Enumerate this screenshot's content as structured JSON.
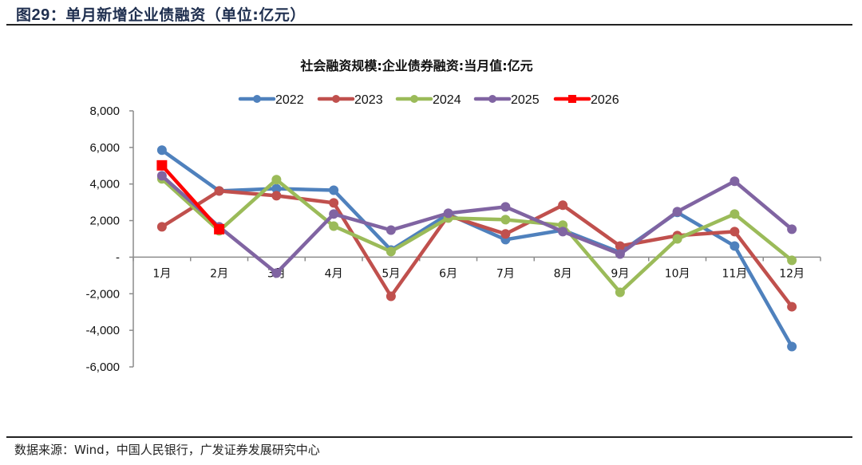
{
  "figure": {
    "number_prefix": "图",
    "number": "29",
    "caption": "：单月新增企业债融资（单位:亿元）"
  },
  "source": "数据来源：Wind，中国人民银行，广发证券发展研究中心",
  "chart_data": {
    "type": "line",
    "title": "社会融资规模:企业债券融资:当月值:亿元",
    "xlabel": "",
    "ylabel": "",
    "categories": [
      "1月",
      "2月",
      "3月",
      "4月",
      "5月",
      "6月",
      "7月",
      "8月",
      "9月",
      "10月",
      "11月",
      "12月"
    ],
    "ylim": [
      -6000,
      8000
    ],
    "yticks": [
      8000,
      6000,
      4000,
      2000,
      0,
      -2000,
      -4000,
      -6000
    ],
    "ytick_labels": [
      "8,000",
      "6,000",
      "4,000",
      "2,000",
      "-",
      "-2,000",
      "-4,000",
      "-6,000"
    ],
    "grid": false,
    "legend_position": "top-center",
    "series": [
      {
        "name": "2022",
        "color": "#4f81bd",
        "marker": "circle",
        "values": [
          5850,
          3620,
          3750,
          3660,
          390,
          2350,
          960,
          1480,
          260,
          2450,
          610,
          -4890
        ]
      },
      {
        "name": "2023",
        "color": "#c0504d",
        "marker": "circle",
        "values": [
          1660,
          3620,
          3360,
          2970,
          -2140,
          2270,
          1270,
          2840,
          610,
          1180,
          1400,
          -2710
        ]
      },
      {
        "name": "2024",
        "color": "#9bbb59",
        "marker": "circle",
        "values": [
          4280,
          1440,
          4240,
          1700,
          310,
          2140,
          2050,
          1750,
          -1920,
          1000,
          2360,
          -170
        ]
      },
      {
        "name": "2025",
        "color": "#8064a2",
        "marker": "circle",
        "values": [
          4450,
          1660,
          -870,
          2360,
          1480,
          2400,
          2750,
          1400,
          170,
          2490,
          4150,
          1530
        ]
      },
      {
        "name": "2026",
        "color": "#ff0000",
        "marker": "square",
        "values": [
          5020,
          1530
        ]
      }
    ]
  }
}
